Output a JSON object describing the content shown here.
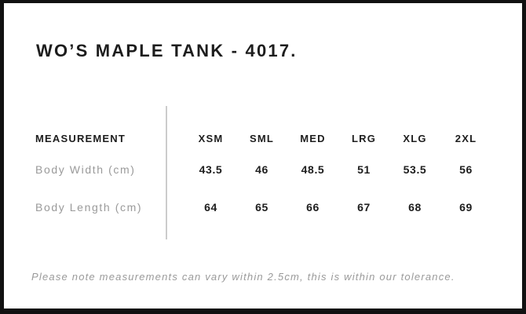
{
  "card": {
    "title": "WO’S MAPLE TANK - 4017.",
    "table": {
      "measurement_header": "MEASUREMENT",
      "sizes": [
        "XSM",
        "SML",
        "MED",
        "LRG",
        "XLG",
        "2XL"
      ],
      "rows": [
        {
          "label": "Body Width (cm)",
          "values": [
            "43.5",
            "46",
            "48.5",
            "51",
            "53.5",
            "56"
          ]
        },
        {
          "label": "Body Length (cm)",
          "values": [
            "64",
            "65",
            "66",
            "67",
            "68",
            "69"
          ]
        }
      ]
    },
    "note": "Please note measurements can vary within 2.5cm, this is within our tolerance.",
    "colors": {
      "text": "#1d1d1d",
      "muted_text": "#9a9a9a",
      "divider": "#cccccc",
      "frame_border": "#111111",
      "background": "#ffffff"
    }
  }
}
